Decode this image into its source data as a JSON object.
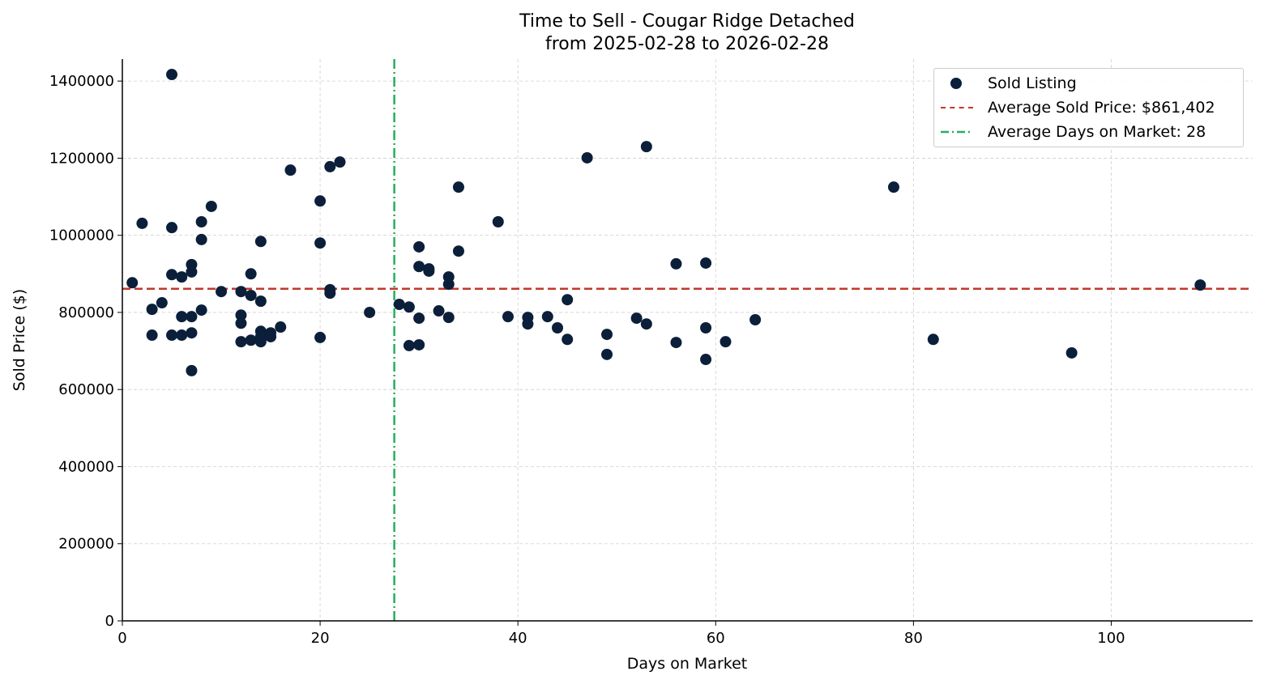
{
  "chart_data": {
    "type": "scatter",
    "title": "Time to Sell - Cougar Ridge Detached",
    "subtitle": "from 2025-02-28 to 2026-02-28",
    "xlabel": "Days on Market",
    "ylabel": "Sold Price ($)",
    "xlim": [
      0,
      114.3
    ],
    "ylim": [
      0,
      1457000
    ],
    "xticks": [
      0,
      20,
      40,
      60,
      80,
      100
    ],
    "yticks": [
      0,
      200000,
      400000,
      600000,
      800000,
      1000000,
      1200000,
      1400000
    ],
    "grid": true,
    "legend_position": "top-right",
    "colors": {
      "points": "#0b1f3a",
      "avg_price": "#c0392b",
      "avg_days": "#27ae60"
    },
    "series": [
      {
        "name": "Sold Listing",
        "points": [
          [
            1,
            877000
          ],
          [
            2,
            1031000
          ],
          [
            3,
            808000
          ],
          [
            3,
            741000
          ],
          [
            4,
            825000
          ],
          [
            5,
            1417000
          ],
          [
            5,
            1020000
          ],
          [
            5,
            898000
          ],
          [
            5,
            741000
          ],
          [
            6,
            892000
          ],
          [
            6,
            789000
          ],
          [
            6,
            741000
          ],
          [
            7,
            924000
          ],
          [
            7,
            905000
          ],
          [
            7,
            789000
          ],
          [
            7,
            747000
          ],
          [
            7,
            649000
          ],
          [
            8,
            1035000
          ],
          [
            8,
            989000
          ],
          [
            8,
            806000
          ],
          [
            9,
            1075000
          ],
          [
            10,
            854000
          ],
          [
            12,
            854000
          ],
          [
            12,
            793000
          ],
          [
            12,
            772000
          ],
          [
            12,
            724000
          ],
          [
            13,
            900000
          ],
          [
            13,
            844000
          ],
          [
            13,
            728000
          ],
          [
            14,
            984000
          ],
          [
            14,
            829000
          ],
          [
            14,
            751000
          ],
          [
            14,
            737000
          ],
          [
            14,
            724000
          ],
          [
            15,
            747000
          ],
          [
            15,
            737000
          ],
          [
            16,
            762000
          ],
          [
            17,
            1169000
          ],
          [
            20,
            1089000
          ],
          [
            20,
            980000
          ],
          [
            20,
            735000
          ],
          [
            21,
            1178000
          ],
          [
            21,
            859000
          ],
          [
            21,
            850000
          ],
          [
            22,
            1190000
          ],
          [
            25,
            800000
          ],
          [
            28,
            821000
          ],
          [
            29,
            814000
          ],
          [
            29,
            714000
          ],
          [
            30,
            970000
          ],
          [
            30,
            919000
          ],
          [
            30,
            785000
          ],
          [
            30,
            716000
          ],
          [
            31,
            913000
          ],
          [
            31,
            907000
          ],
          [
            32,
            804000
          ],
          [
            33,
            892000
          ],
          [
            33,
            873000
          ],
          [
            33,
            787000
          ],
          [
            34,
            1125000
          ],
          [
            34,
            959000
          ],
          [
            38,
            1035000
          ],
          [
            39,
            789000
          ],
          [
            41,
            787000
          ],
          [
            41,
            770000
          ],
          [
            43,
            789000
          ],
          [
            44,
            760000
          ],
          [
            45,
            833000
          ],
          [
            45,
            730000
          ],
          [
            47,
            1201000
          ],
          [
            49,
            743000
          ],
          [
            49,
            691000
          ],
          [
            52,
            785000
          ],
          [
            53,
            1230000
          ],
          [
            53,
            770000
          ],
          [
            56,
            926000
          ],
          [
            56,
            722000
          ],
          [
            59,
            928000
          ],
          [
            59,
            760000
          ],
          [
            59,
            678000
          ],
          [
            61,
            724000
          ],
          [
            64,
            781000
          ],
          [
            78,
            1125000
          ],
          [
            82,
            730000
          ],
          [
            96,
            695000
          ],
          [
            109,
            871000
          ]
        ]
      }
    ],
    "reference_lines": [
      {
        "name": "Average Sold Price: $861,402",
        "orientation": "horizontal",
        "value": 861402,
        "style": "dashed"
      },
      {
        "name": "Average Days on Market: 28",
        "orientation": "vertical",
        "value": 27.5,
        "style": "dashdot"
      }
    ]
  }
}
